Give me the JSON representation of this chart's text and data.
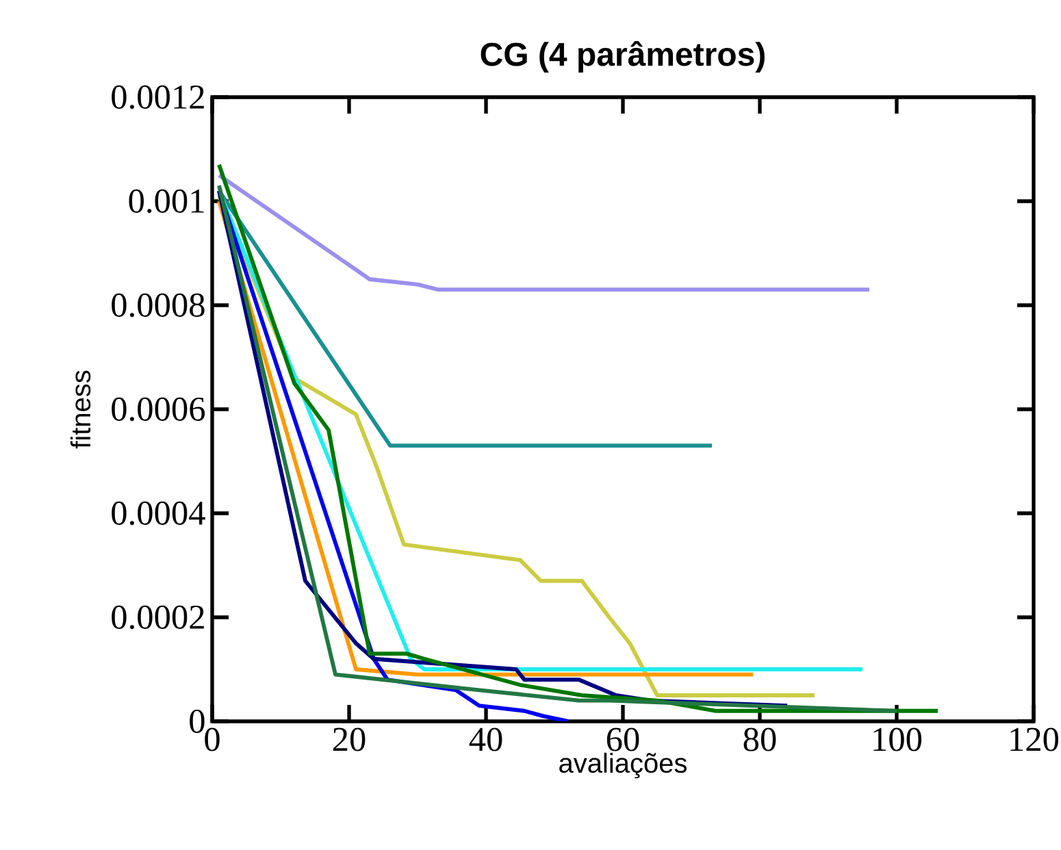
{
  "chart_data": {
    "type": "line",
    "title": "CG (4 parâmetros)",
    "xlabel": "avaliações",
    "ylabel": "fitness",
    "xlim": [
      0,
      120
    ],
    "xticks": [
      0,
      20,
      40,
      60,
      80,
      100,
      120
    ],
    "ylim": [
      0,
      0.0012
    ],
    "yticks": [
      0,
      0.0002,
      0.0004,
      0.0006,
      0.0008,
      0.001,
      0.0012
    ],
    "grid": false,
    "marker": "none",
    "line_style": "solid",
    "series": [
      {
        "color": "#9b8fef",
        "x": [
          1,
          23,
          30,
          33,
          96
        ],
        "values": [
          0.00105,
          0.00085,
          0.00084,
          0.00083,
          0.00083
        ]
      },
      {
        "color": "#1a9090",
        "x": [
          1,
          26,
          73
        ],
        "values": [
          0.00102,
          0.00053,
          0.00053
        ]
      },
      {
        "color": "#cccc44",
        "x": [
          1,
          12,
          21,
          24,
          28,
          45,
          48,
          54,
          58,
          61,
          65,
          88
        ],
        "values": [
          0.00101,
          0.00066,
          0.00059,
          0.00049,
          0.00034,
          0.00031,
          0.00027,
          0.00027,
          0.0002,
          0.00015,
          5e-05,
          5e-05
        ]
      },
      {
        "color": "#22eeee",
        "x": [
          1,
          29,
          31,
          95
        ],
        "values": [
          0.00102,
          0.00012,
          0.0001,
          0.0001
        ]
      },
      {
        "color": "#ff9900",
        "x": [
          1,
          21,
          30,
          79
        ],
        "values": [
          0.001,
          0.0001,
          9e-05,
          9e-05
        ]
      },
      {
        "color": "#0000ee",
        "x": [
          1,
          23.6,
          25.6,
          35.6,
          39,
          45.6,
          48.4,
          52
        ],
        "values": [
          0.00102,
          0.00012,
          8e-05,
          6e-05,
          3e-05,
          2e-05,
          1e-05,
          0
        ]
      },
      {
        "color": "#000080",
        "x": [
          1,
          13.6,
          21,
          23.6,
          44.4,
          45.6,
          53.6,
          59,
          64,
          84
        ],
        "values": [
          0.00102,
          0.00027,
          0.00015,
          0.00012,
          0.0001,
          8e-05,
          8e-05,
          5e-05,
          4e-05,
          3e-05
        ]
      },
      {
        "color": "#007700",
        "x": [
          1,
          12,
          17,
          23,
          28.4,
          31,
          45,
          54,
          65,
          73.6,
          106
        ],
        "values": [
          0.00107,
          0.00065,
          0.00056,
          0.00013,
          0.00013,
          0.00012,
          7e-05,
          5e-05,
          4e-05,
          2e-05,
          2e-05
        ]
      },
      {
        "color": "#227744",
        "x": [
          1,
          18,
          39,
          53.6,
          58,
          100
        ],
        "values": [
          0.00103,
          9e-05,
          6e-05,
          4e-05,
          4e-05,
          2e-05
        ]
      }
    ]
  }
}
